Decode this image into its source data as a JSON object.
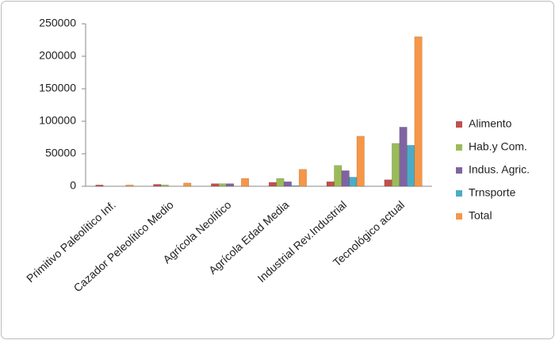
{
  "chart_data": {
    "type": "bar",
    "categories": [
      "Primitivo Paleolítico Inf.",
      "Cazador Peleolítico Medio",
      "Agrícola Neolítico",
      "Agrícola Edad Media",
      "Industrial Rev.Industrial",
      "Tecnológico actual"
    ],
    "series": [
      {
        "name": "Alimento",
        "color": "#c0504d",
        "values": [
          2000,
          3000,
          4000,
          6000,
          7000,
          10000
        ]
      },
      {
        "name": "Hab.y Com.",
        "color": "#9bbb59",
        "values": [
          0,
          2000,
          4000,
          12000,
          32000,
          66000
        ]
      },
      {
        "name": "Indus. Agric.",
        "color": "#8064a2",
        "values": [
          0,
          0,
          4000,
          7000,
          24000,
          91000
        ]
      },
      {
        "name": "Trnsporte",
        "color": "#4bacc6",
        "values": [
          0,
          0,
          0,
          1000,
          14000,
          63000
        ]
      },
      {
        "name": "Total",
        "color": "#f79646",
        "values": [
          2000,
          5000,
          12000,
          26000,
          77000,
          230000
        ]
      }
    ],
    "ylim": [
      0,
      250000
    ],
    "yticks": [
      0,
      50000,
      100000,
      150000,
      200000,
      250000
    ],
    "legend": "right"
  }
}
